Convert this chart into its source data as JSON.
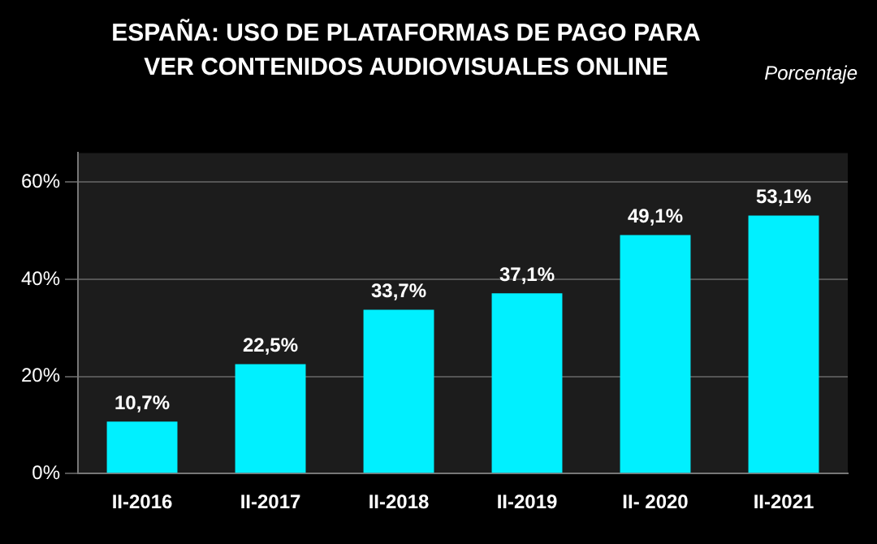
{
  "chart_data": {
    "type": "bar",
    "title": "ESPAÑA: USO DE PLATAFORMAS DE PAGO PARA VER CONTENIDOS AUDIOVISUALES ONLINE",
    "ylabel": "Porcentaje",
    "categories": [
      "II-2016",
      "II-2017",
      "II-2018",
      "II-2019",
      "II- 2020",
      "II-2021"
    ],
    "values": [
      10.7,
      22.5,
      33.7,
      37.1,
      49.1,
      53.1
    ],
    "value_labels": [
      "10,7%",
      "22,5%",
      "33,7%",
      "37,1%",
      "49,1%",
      "53,1%"
    ],
    "color": "#00f0ff",
    "ylim": [
      0,
      66
    ],
    "yticks": [
      {
        "value": 0,
        "label": "0%"
      },
      {
        "value": 20,
        "label": "20%"
      },
      {
        "value": 40,
        "label": "40%"
      },
      {
        "value": 60,
        "label": "60%"
      }
    ],
    "grid": "y"
  }
}
